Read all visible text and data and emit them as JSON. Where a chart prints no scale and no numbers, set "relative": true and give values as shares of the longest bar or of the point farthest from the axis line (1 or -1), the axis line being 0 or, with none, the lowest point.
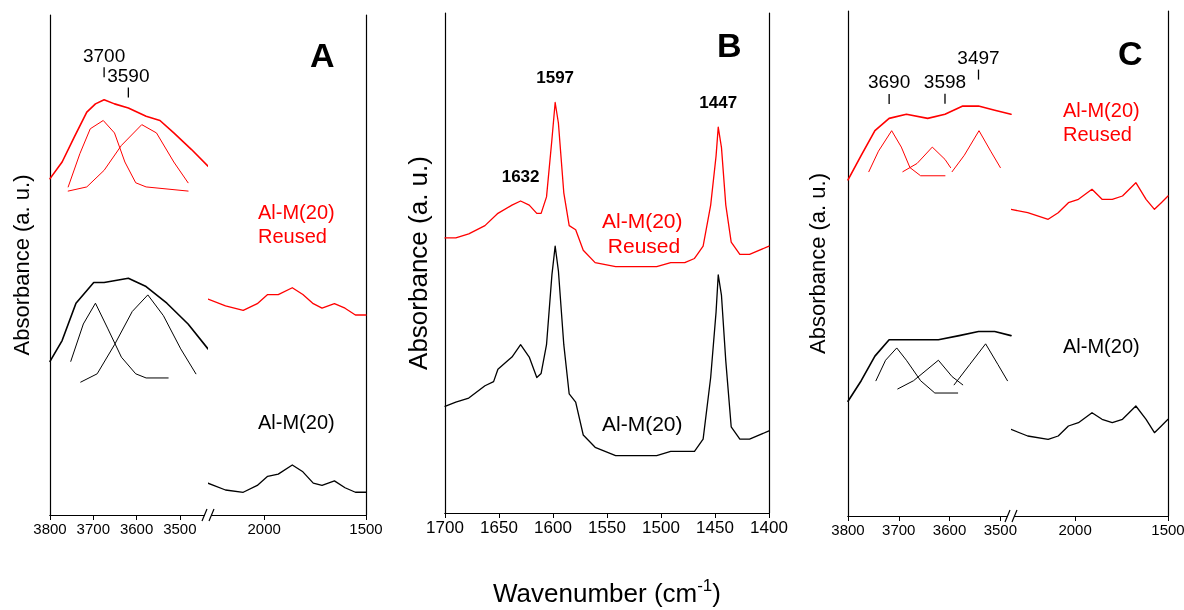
{
  "chart_data": [
    {
      "type": "line",
      "relative": true,
      "tick_labels": "x",
      "marker": "none",
      "line_style": "solid",
      "ylabel": "Absorbance (a. u.)",
      "xlim": [
        3800,
        3435
      ],
      "xticks": [
        3800,
        3700,
        3600,
        3500
      ],
      "annotations": [
        {
          "text": "3700",
          "x": 3675,
          "y": 1.0
        },
        {
          "text": "3590",
          "x": 3619,
          "y": 0.98
        }
      ],
      "series": [
        {
          "color": "#ff0000",
          "x": [
            3800,
            3772,
            3744,
            3715,
            3695,
            3675,
            3651,
            3619,
            3578,
            3546,
            3514,
            3473,
            3435
          ],
          "values": [
            0.81,
            0.85,
            0.91,
            0.97,
            0.99,
            1.0,
            0.99,
            0.98,
            0.96,
            0.95,
            0.92,
            0.88,
            0.84
          ]
        },
        {
          "color": "#ff0000",
          "x": [
            3758,
            3731,
            3707,
            3677,
            3651,
            3627,
            3602,
            3578,
            3481
          ],
          "values": [
            0.79,
            0.87,
            0.93,
            0.95,
            0.92,
            0.85,
            0.8,
            0.79,
            0.78
          ]
        },
        {
          "color": "#ff0000",
          "x": [
            3758,
            3715,
            3675,
            3635,
            3588,
            3554,
            3514,
            3481
          ],
          "values": [
            0.78,
            0.79,
            0.83,
            0.89,
            0.94,
            0.92,
            0.85,
            0.8
          ]
        },
        {
          "color": "#000000",
          "x": [
            3800,
            3772,
            3740,
            3699,
            3675,
            3619,
            3578,
            3530,
            3481,
            3435
          ],
          "values": [
            0.37,
            0.42,
            0.51,
            0.56,
            0.56,
            0.57,
            0.55,
            0.51,
            0.46,
            0.4
          ]
        },
        {
          "color": "#000000",
          "x": [
            3752,
            3723,
            3695,
            3667,
            3635,
            3602,
            3578,
            3527
          ],
          "values": [
            0.37,
            0.46,
            0.51,
            0.45,
            0.38,
            0.34,
            0.33,
            0.33
          ]
        },
        {
          "color": "#000000",
          "x": [
            3729,
            3691,
            3651,
            3610,
            3574,
            3538,
            3498,
            3463
          ],
          "values": [
            0.32,
            0.34,
            0.41,
            0.49,
            0.53,
            0.48,
            0.4,
            0.34
          ]
        }
      ]
    },
    {
      "type": "line",
      "relative": true,
      "tick_labels": "x",
      "marker": "none",
      "line_style": "solid",
      "title": "A",
      "xlim": [
        2276,
        1500
      ],
      "xticks": [
        2000,
        1500
      ],
      "series": [
        {
          "name": "Al-M(20) Reused",
          "color": "#ff0000",
          "x": [
            2276,
            2190,
            2103,
            2034,
            1983,
            1931,
            1862,
            1810,
            1759,
            1716,
            1655,
            1603,
            1552,
            1500
          ],
          "values": [
            0.95,
            0.92,
            0.9,
            0.93,
            0.97,
            0.97,
            1.0,
            0.97,
            0.93,
            0.91,
            0.93,
            0.91,
            0.88,
            0.88
          ]
        },
        {
          "name": "Al-M(20)",
          "color": "#000000",
          "x": [
            2276,
            2190,
            2103,
            2034,
            1983,
            1931,
            1862,
            1810,
            1759,
            1716,
            1655,
            1603,
            1552,
            1500
          ],
          "values": [
            0.14,
            0.11,
            0.1,
            0.13,
            0.17,
            0.18,
            0.22,
            0.19,
            0.14,
            0.13,
            0.15,
            0.12,
            0.1,
            0.1
          ]
        }
      ]
    },
    {
      "type": "line",
      "relative": true,
      "tick_labels": "x",
      "marker": "none",
      "line_style": "solid",
      "title": "B",
      "ylabel": "Absorbance (a. u.)",
      "xlabel": "Wavenumber (cm$^{-1}$)",
      "xlim": [
        1700,
        1400
      ],
      "xticks": [
        1700,
        1650,
        1600,
        1550,
        1500,
        1450,
        1400
      ],
      "annotations": [
        {
          "text": "1632",
          "x": 1630,
          "y": 0.76
        },
        {
          "text": "1597",
          "x": 1598,
          "y": 1.0
        },
        {
          "text": "1447",
          "x": 1447,
          "y": 0.94
        }
      ],
      "series": [
        {
          "name": "Al-M(20) Reused",
          "color": "#ff0000",
          "x": [
            1700,
            1690,
            1678,
            1663,
            1651,
            1638,
            1630,
            1622,
            1615,
            1611,
            1606,
            1601,
            1598,
            1595,
            1590,
            1585,
            1579,
            1572,
            1561,
            1542,
            1523,
            1504,
            1491,
            1478,
            1469,
            1461,
            1454,
            1449,
            1447,
            1444,
            1440,
            1435,
            1427,
            1418,
            1400
          ],
          "values": [
            0.67,
            0.67,
            0.68,
            0.7,
            0.73,
            0.75,
            0.76,
            0.75,
            0.73,
            0.73,
            0.77,
            0.91,
            1.0,
            0.95,
            0.78,
            0.7,
            0.69,
            0.64,
            0.61,
            0.6,
            0.6,
            0.6,
            0.61,
            0.61,
            0.62,
            0.65,
            0.75,
            0.87,
            0.94,
            0.89,
            0.75,
            0.66,
            0.63,
            0.63,
            0.65
          ]
        },
        {
          "name": "Al-M(20)",
          "color": "#000000",
          "x": [
            1700,
            1690,
            1678,
            1663,
            1655,
            1651,
            1638,
            1630,
            1622,
            1615,
            1611,
            1606,
            1601,
            1598,
            1595,
            1590,
            1585,
            1579,
            1572,
            1561,
            1542,
            1523,
            1504,
            1491,
            1478,
            1469,
            1461,
            1454,
            1449,
            1447,
            1444,
            1440,
            1435,
            1427,
            1418,
            1400
          ],
          "values": [
            0.26,
            0.27,
            0.28,
            0.31,
            0.32,
            0.35,
            0.38,
            0.41,
            0.38,
            0.33,
            0.34,
            0.41,
            0.58,
            0.65,
            0.59,
            0.41,
            0.29,
            0.27,
            0.19,
            0.16,
            0.14,
            0.14,
            0.14,
            0.15,
            0.15,
            0.15,
            0.18,
            0.33,
            0.49,
            0.58,
            0.53,
            0.37,
            0.21,
            0.18,
            0.18,
            0.2
          ]
        }
      ]
    },
    {
      "type": "line",
      "relative": true,
      "tick_labels": "x",
      "marker": "none",
      "line_style": "solid",
      "ylabel": "Absorbance (a. u.)",
      "xlim": [
        3800,
        3479
      ],
      "xticks": [
        3800,
        3700,
        3600,
        3500
      ],
      "annotations": [
        {
          "text": "3690",
          "x": 3719,
          "y": 0.97
        },
        {
          "text": "3598",
          "x": 3609,
          "y": 0.98
        },
        {
          "text": "3497",
          "x": 3543,
          "y": 1.0
        }
      ],
      "series": [
        {
          "color": "#ff0000",
          "x": [
            3800,
            3774,
            3747,
            3719,
            3685,
            3643,
            3609,
            3574,
            3543,
            3511,
            3479
          ],
          "values": [
            0.82,
            0.88,
            0.94,
            0.97,
            0.98,
            0.97,
            0.98,
            1.0,
            1.0,
            0.99,
            0.98
          ]
        },
        {
          "color": "#ff0000",
          "x": [
            3759,
            3740,
            3714,
            3695,
            3678,
            3657,
            3609
          ],
          "values": [
            0.84,
            0.89,
            0.94,
            0.9,
            0.85,
            0.83,
            0.83
          ]
        },
        {
          "color": "#ff0000",
          "x": [
            3692,
            3664,
            3634,
            3609,
            3598
          ],
          "values": [
            0.84,
            0.86,
            0.9,
            0.87,
            0.85
          ]
        },
        {
          "color": "#ff0000",
          "x": [
            3595,
            3571,
            3542,
            3519,
            3500
          ],
          "values": [
            0.84,
            0.88,
            0.94,
            0.89,
            0.85
          ]
        },
        {
          "color": "#000000",
          "x": [
            3800,
            3774,
            3747,
            3719,
            3685,
            3622,
            3581,
            3543,
            3511,
            3479
          ],
          "values": [
            0.28,
            0.33,
            0.39,
            0.43,
            0.43,
            0.43,
            0.44,
            0.45,
            0.45,
            0.44
          ]
        },
        {
          "color": "#000000",
          "x": [
            3745,
            3726,
            3704,
            3685,
            3657,
            3629,
            3584
          ],
          "values": [
            0.33,
            0.38,
            0.41,
            0.38,
            0.33,
            0.3,
            0.3
          ]
        },
        {
          "color": "#000000",
          "x": [
            3702,
            3671,
            3622,
            3595,
            3574
          ],
          "values": [
            0.31,
            0.33,
            0.38,
            0.34,
            0.32
          ]
        },
        {
          "color": "#000000",
          "x": [
            3591,
            3560,
            3529,
            3505,
            3486
          ],
          "values": [
            0.32,
            0.37,
            0.42,
            0.37,
            0.33
          ]
        }
      ]
    },
    {
      "type": "line",
      "relative": true,
      "tick_labels": "x",
      "marker": "none",
      "line_style": "solid",
      "title": "C",
      "xlim": [
        2345,
        1500
      ],
      "xticks": [
        2000,
        1500
      ],
      "series": [
        {
          "name": "Al-M(20) Reused",
          "color": "#ff0000",
          "x": [
            2345,
            2255,
            2145,
            2091,
            2036,
            1982,
            1909,
            1855,
            1800,
            1745,
            1673,
            1618,
            1573,
            1536,
            1500
          ],
          "values": [
            0.92,
            0.91,
            0.89,
            0.91,
            0.94,
            0.95,
            0.98,
            0.95,
            0.95,
            0.96,
            1.0,
            0.95,
            0.92,
            0.94,
            0.96
          ]
        },
        {
          "name": "Al-M(20)",
          "color": "#000000",
          "x": [
            2345,
            2255,
            2145,
            2091,
            2036,
            1982,
            1909,
            1855,
            1800,
            1745,
            1673,
            1618,
            1573,
            1536,
            1500
          ],
          "values": [
            0.26,
            0.24,
            0.23,
            0.24,
            0.27,
            0.28,
            0.31,
            0.29,
            0.28,
            0.29,
            0.33,
            0.29,
            0.25,
            0.27,
            0.29
          ]
        }
      ]
    }
  ]
}
